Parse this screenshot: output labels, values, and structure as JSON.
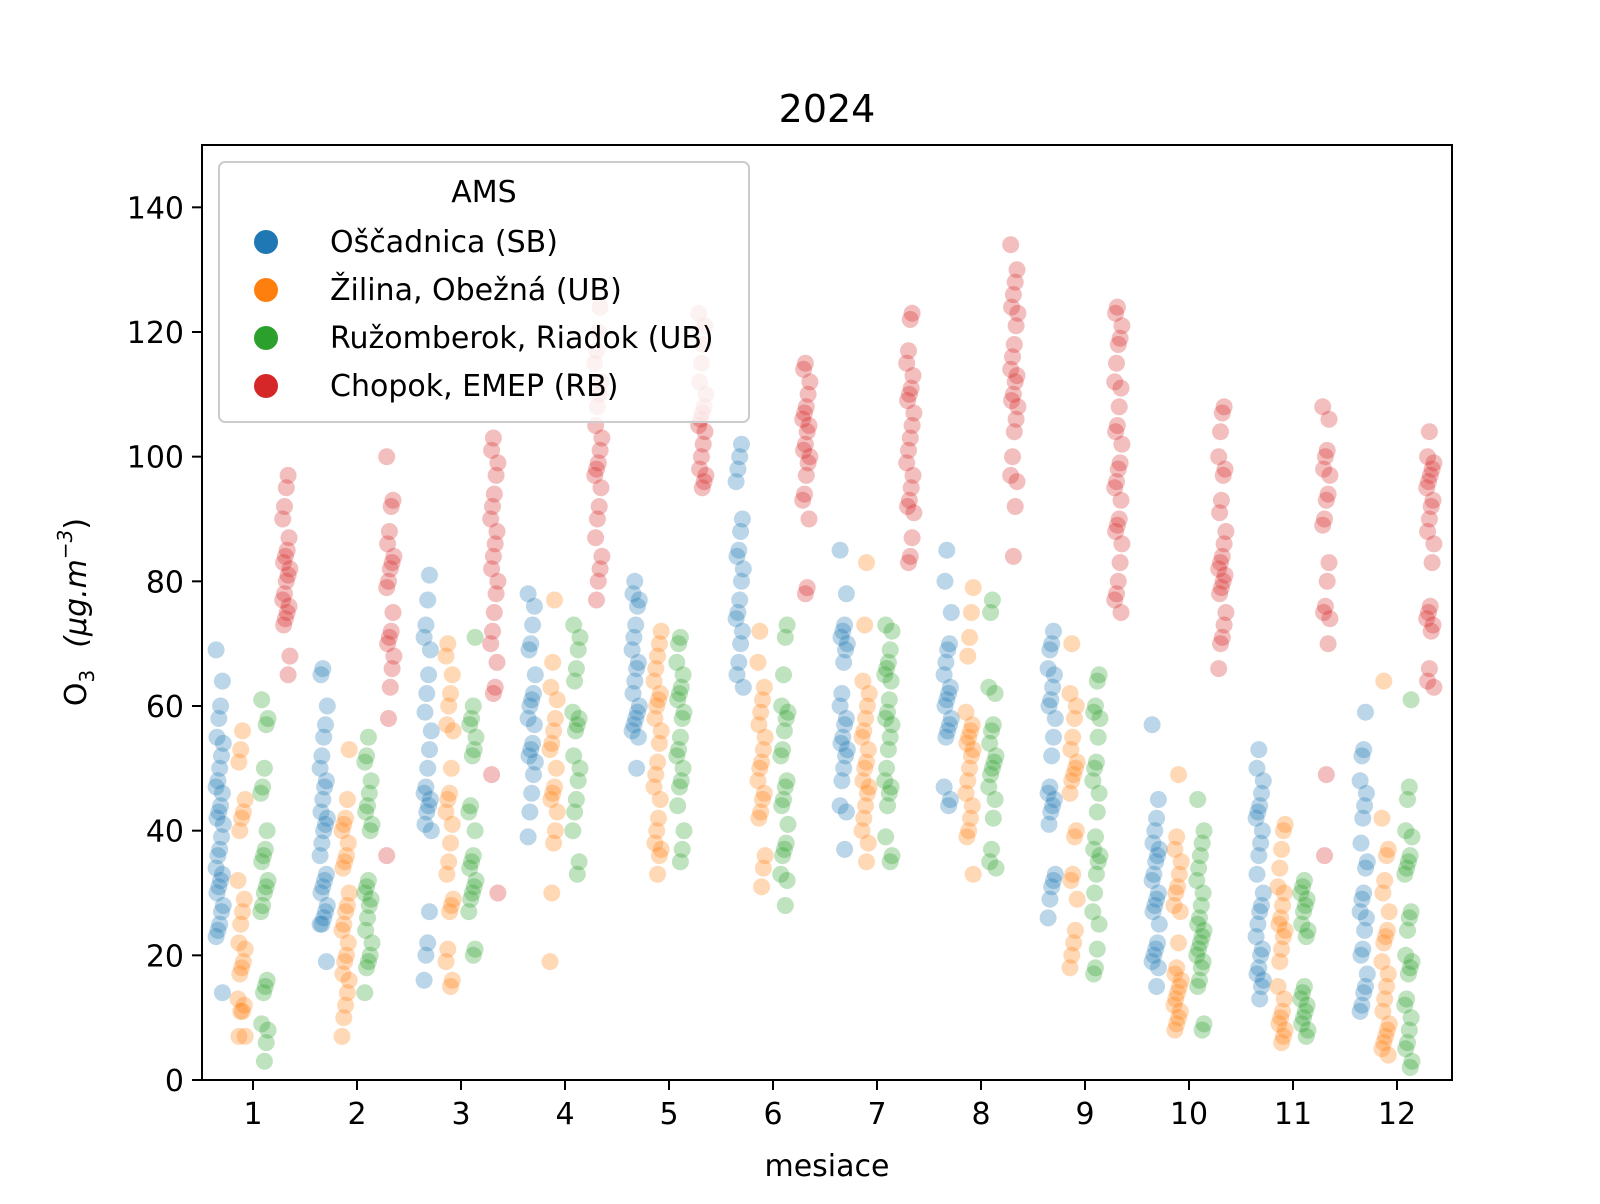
{
  "chart_data": {
    "type": "scatter",
    "subtype": "strip",
    "title": "2024",
    "xlabel": "mesiace",
    "ylabel": "O₃ (μg.m⁻³)",
    "ylabel_main": "O",
    "ylabel_sub": "3",
    "ylabel_unit": "(μg.m",
    "ylabel_exp": "−3",
    "ylabel_close": ")",
    "ylim": [
      0,
      150
    ],
    "yticks": [
      0,
      20,
      40,
      60,
      80,
      100,
      120,
      140
    ],
    "categories": [
      "1",
      "2",
      "3",
      "4",
      "5",
      "6",
      "7",
      "8",
      "9",
      "10",
      "11",
      "12"
    ],
    "legend": {
      "title": "AMS",
      "placement": "top-left"
    },
    "series": [
      {
        "name": "Oščadnica (SB)",
        "color": "#1f77b4",
        "values": [
          [
            69,
            64,
            60,
            58,
            55,
            54,
            52,
            50,
            48,
            47,
            46,
            44,
            43,
            42,
            41,
            39,
            37,
            36,
            34,
            33,
            32,
            31,
            30,
            28,
            27,
            25,
            24,
            23,
            14
          ],
          [
            66,
            65,
            60,
            57,
            55,
            52,
            50,
            48,
            47,
            45,
            43,
            42,
            41,
            40,
            38,
            36,
            33,
            32,
            31,
            30,
            28,
            27,
            26,
            25,
            25,
            19
          ],
          [
            81,
            77,
            73,
            71,
            69,
            65,
            62,
            59,
            56,
            53,
            50,
            47,
            46,
            45,
            44,
            43,
            41,
            40,
            27,
            22,
            20,
            16
          ],
          [
            78,
            76,
            73,
            70,
            69,
            65,
            62,
            61,
            60,
            58,
            57,
            54,
            53,
            52,
            51,
            49,
            46,
            43,
            39
          ],
          [
            80,
            78,
            77,
            76,
            73,
            71,
            69,
            67,
            66,
            64,
            62,
            60,
            59,
            58,
            57,
            56,
            55,
            50
          ],
          [
            102,
            100,
            98,
            96,
            90,
            88,
            85,
            84,
            82,
            80,
            77,
            75,
            74,
            72,
            70,
            67,
            65,
            63
          ],
          [
            85,
            78,
            73,
            72,
            71,
            70,
            69,
            67,
            62,
            60,
            58,
            57,
            55,
            54,
            53,
            52,
            50,
            48,
            44,
            43,
            37
          ],
          [
            85,
            80,
            75,
            70,
            69,
            67,
            65,
            63,
            62,
            61,
            60,
            58,
            57,
            56,
            55,
            47,
            45,
            44
          ],
          [
            72,
            70,
            69,
            66,
            65,
            63,
            61,
            60,
            58,
            55,
            52,
            47,
            46,
            45,
            44,
            43,
            41,
            33,
            32,
            31,
            29,
            26
          ],
          [
            57,
            45,
            42,
            40,
            38,
            37,
            36,
            35,
            33,
            32,
            30,
            29,
            28,
            27,
            25,
            22,
            21,
            20,
            19,
            18,
            15
          ],
          [
            53,
            50,
            48,
            46,
            44,
            43,
            42,
            40,
            38,
            36,
            33,
            30,
            28,
            27,
            25,
            23,
            21,
            20,
            18,
            17,
            16,
            15,
            13
          ],
          [
            59,
            53,
            52,
            48,
            46,
            44,
            42,
            38,
            35,
            34,
            30,
            29,
            27,
            26,
            24,
            21,
            20,
            17,
            15,
            14,
            12,
            11
          ]
        ]
      },
      {
        "name": "Žilina, Obežná (UB)",
        "color": "#ff7f0e",
        "values": [
          [
            56,
            53,
            51,
            45,
            43,
            42,
            40,
            32,
            29,
            27,
            25,
            22,
            21,
            19,
            18,
            17,
            13,
            12,
            11,
            11,
            7,
            7
          ],
          [
            53,
            45,
            42,
            41,
            40,
            38,
            36,
            35,
            34,
            30,
            28,
            27,
            25,
            24,
            22,
            20,
            19,
            17,
            16,
            14,
            12,
            10,
            7
          ],
          [
            70,
            68,
            65,
            62,
            60,
            57,
            56,
            50,
            46,
            45,
            43,
            41,
            38,
            35,
            33,
            29,
            28,
            27,
            21,
            19,
            16,
            15
          ],
          [
            77,
            67,
            63,
            61,
            58,
            56,
            54,
            53,
            50,
            47,
            46,
            45,
            43,
            40,
            38,
            30,
            19
          ],
          [
            72,
            70,
            68,
            66,
            64,
            62,
            61,
            60,
            58,
            56,
            54,
            51,
            49,
            47,
            45,
            42,
            40,
            38,
            37,
            36,
            33
          ],
          [
            72,
            67,
            63,
            61,
            59,
            57,
            55,
            53,
            51,
            50,
            48,
            46,
            45,
            43,
            42,
            36,
            34,
            31
          ],
          [
            83,
            73,
            64,
            62,
            60,
            58,
            56,
            55,
            53,
            51,
            50,
            48,
            47,
            46,
            44,
            42,
            40,
            38,
            35
          ],
          [
            79,
            75,
            71,
            68,
            59,
            57,
            56,
            55,
            54,
            53,
            52,
            50,
            48,
            46,
            44,
            42,
            40,
            39,
            33
          ],
          [
            70,
            62,
            60,
            58,
            55,
            53,
            51,
            50,
            49,
            48,
            46,
            40,
            39,
            33,
            32,
            29,
            24,
            22,
            20,
            18
          ],
          [
            49,
            39,
            37,
            35,
            33,
            31,
            30,
            28,
            27,
            22,
            18,
            17,
            16,
            15,
            14,
            13,
            12,
            11,
            10,
            9,
            8
          ],
          [
            41,
            40,
            37,
            34,
            31,
            30,
            28,
            26,
            25,
            24,
            23,
            21,
            19,
            15,
            13,
            11,
            10,
            9,
            8,
            7,
            6
          ],
          [
            64,
            42,
            37,
            36,
            32,
            30,
            27,
            24,
            23,
            22,
            19,
            17,
            15,
            13,
            11,
            9,
            8,
            7,
            6,
            5,
            4
          ]
        ]
      },
      {
        "name": "Ružomberok, Riadok (UB)",
        "color": "#2ca02c",
        "values": [
          [
            61,
            58,
            57,
            50,
            47,
            46,
            40,
            37,
            36,
            35,
            32,
            31,
            30,
            28,
            27,
            16,
            15,
            14,
            9,
            8,
            6,
            3
          ],
          [
            55,
            52,
            51,
            48,
            46,
            44,
            43,
            41,
            40,
            32,
            31,
            30,
            29,
            28,
            26,
            24,
            22,
            20,
            19,
            18,
            14
          ],
          [
            71,
            60,
            58,
            57,
            55,
            53,
            52,
            44,
            43,
            40,
            36,
            35,
            34,
            32,
            31,
            30,
            29,
            27,
            21,
            20
          ],
          [
            73,
            71,
            69,
            66,
            64,
            59,
            58,
            57,
            56,
            52,
            50,
            48,
            45,
            43,
            40,
            35,
            33
          ],
          [
            71,
            70,
            67,
            65,
            63,
            62,
            61,
            59,
            58,
            55,
            53,
            52,
            50,
            48,
            47,
            44,
            40,
            37,
            35
          ],
          [
            73,
            71,
            65,
            60,
            59,
            58,
            56,
            53,
            52,
            48,
            47,
            45,
            44,
            41,
            38,
            37,
            36,
            33,
            32,
            28
          ],
          [
            73,
            72,
            69,
            67,
            66,
            65,
            64,
            61,
            59,
            58,
            57,
            55,
            53,
            50,
            48,
            47,
            46,
            44,
            39,
            36,
            35
          ],
          [
            77,
            75,
            63,
            62,
            57,
            56,
            54,
            52,
            51,
            50,
            49,
            47,
            45,
            42,
            37,
            35,
            34
          ],
          [
            65,
            64,
            60,
            59,
            58,
            55,
            51,
            50,
            48,
            46,
            43,
            39,
            37,
            36,
            35,
            33,
            30,
            27,
            25,
            21,
            18,
            17
          ],
          [
            45,
            40,
            38,
            36,
            34,
            32,
            30,
            28,
            26,
            25,
            24,
            23,
            22,
            21,
            20,
            19,
            18,
            16,
            15,
            9,
            8
          ],
          [
            32,
            31,
            30,
            29,
            28,
            27,
            25,
            24,
            23,
            15,
            14,
            13,
            12,
            11,
            10,
            9,
            8,
            7
          ],
          [
            61,
            47,
            45,
            40,
            39,
            36,
            35,
            34,
            33,
            27,
            26,
            24,
            20,
            19,
            18,
            17,
            13,
            12,
            10,
            8,
            6,
            5,
            3,
            2
          ]
        ]
      },
      {
        "name": "Chopok, EMEP (RB)",
        "color": "#d62728",
        "values": [
          [
            97,
            95,
            92,
            90,
            87,
            85,
            84,
            83,
            82,
            81,
            80,
            78,
            77,
            76,
            75,
            74,
            73,
            68,
            65
          ],
          [
            100,
            93,
            92,
            88,
            86,
            84,
            83,
            82,
            80,
            79,
            75,
            72,
            71,
            70,
            68,
            66,
            63,
            58,
            36
          ],
          [
            103,
            101,
            99,
            97,
            94,
            92,
            90,
            88,
            86,
            84,
            82,
            80,
            78,
            75,
            72,
            70,
            67,
            63,
            62,
            49,
            30
          ],
          [
            124,
            120,
            117,
            115,
            112,
            110,
            108,
            105,
            103,
            101,
            99,
            98,
            97,
            95,
            92,
            90,
            87,
            84,
            82,
            80,
            77
          ],
          [
            123,
            121,
            118,
            115,
            112,
            110,
            108,
            107,
            106,
            105,
            104,
            102,
            100,
            98,
            97,
            96,
            95
          ],
          [
            115,
            114,
            112,
            110,
            108,
            107,
            106,
            105,
            104,
            102,
            101,
            100,
            99,
            97,
            94,
            93,
            90,
            79,
            78
          ],
          [
            123,
            122,
            117,
            115,
            113,
            111,
            110,
            109,
            107,
            105,
            103,
            101,
            99,
            97,
            95,
            93,
            92,
            91,
            87,
            84,
            83
          ],
          [
            134,
            130,
            128,
            126,
            124,
            123,
            121,
            118,
            116,
            114,
            113,
            112,
            110,
            109,
            108,
            106,
            104,
            100,
            97,
            96,
            92,
            84
          ],
          [
            124,
            123,
            121,
            119,
            118,
            115,
            112,
            111,
            108,
            105,
            104,
            102,
            99,
            98,
            96,
            95,
            93,
            90,
            89,
            88,
            86,
            83,
            80,
            78,
            77,
            75
          ],
          [
            108,
            107,
            104,
            100,
            98,
            97,
            93,
            91,
            88,
            86,
            84,
            83,
            82,
            81,
            80,
            79,
            78,
            75,
            73,
            71,
            70,
            66
          ],
          [
            108,
            106,
            101,
            100,
            98,
            97,
            94,
            93,
            90,
            89,
            83,
            80,
            76,
            75,
            74,
            70,
            49,
            36
          ],
          [
            104,
            100,
            99,
            98,
            97,
            96,
            95,
            93,
            92,
            90,
            88,
            86,
            83,
            76,
            75,
            74,
            73,
            72,
            66,
            64,
            63
          ]
        ]
      }
    ]
  }
}
